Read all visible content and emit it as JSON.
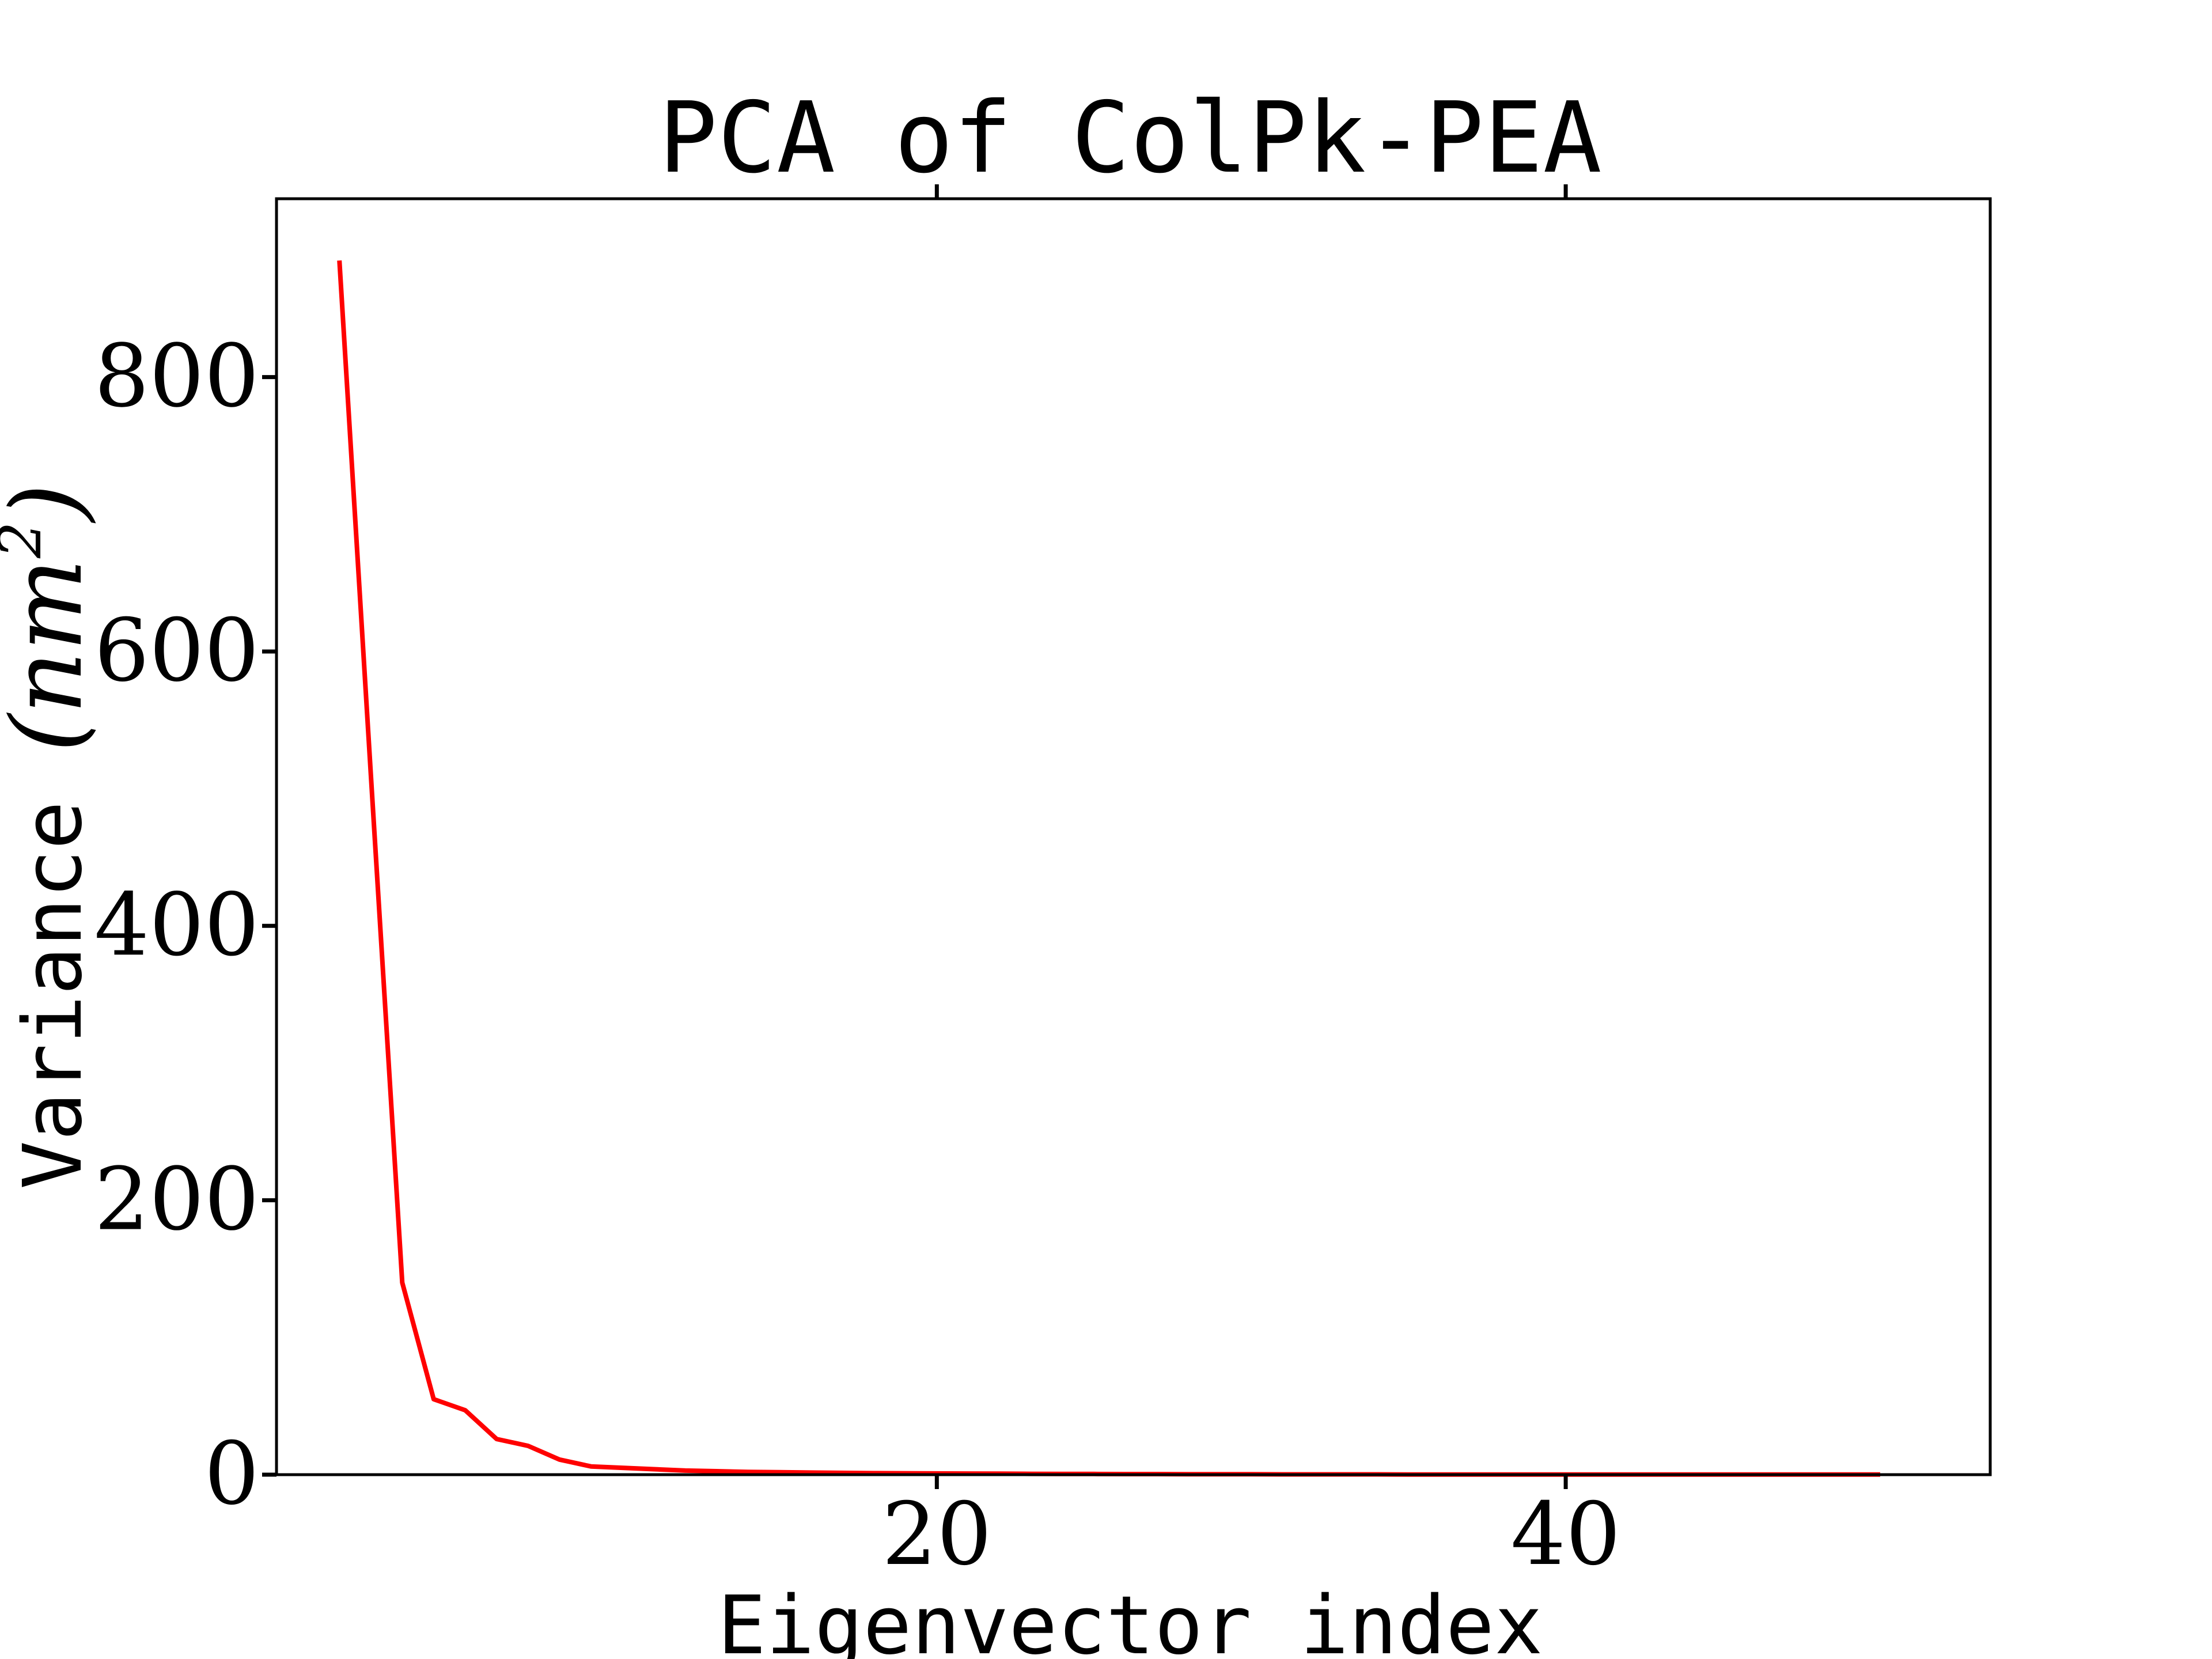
{
  "chart_data": {
    "type": "line",
    "title": "PCA of ColPk-PEA",
    "xlabel": "Eigenvector index",
    "ylabel_text": "Variance ",
    "ylabel_unit": "(nm",
    "ylabel_unit_sup": "2",
    "ylabel_unit_close": ")",
    "xlim": [
      -1,
      53.5
    ],
    "ylim": [
      0,
      930
    ],
    "xticks": [
      20,
      40
    ],
    "xtick_labels": [
      "20",
      "40"
    ],
    "yticks": [
      0,
      200,
      400,
      600,
      800
    ],
    "ytick_labels": [
      "0",
      "200",
      "400",
      "600",
      "800"
    ],
    "grid": false,
    "line_color": "#ff0000",
    "series": [
      {
        "x": [
          1,
          2,
          3,
          4,
          5,
          6,
          7,
          8,
          9,
          10,
          11,
          12,
          13,
          14,
          15,
          16,
          17,
          18,
          19,
          20,
          21,
          22,
          23,
          24,
          25,
          26,
          27,
          28,
          29,
          30,
          31,
          32,
          33,
          34,
          35,
          36,
          37,
          38,
          39,
          40,
          41,
          42,
          43,
          44,
          45,
          46,
          47,
          48,
          49,
          50
        ],
        "y": [
          885,
          510,
          140,
          55,
          47,
          26,
          21,
          11,
          6,
          5,
          4,
          3,
          2.5,
          2,
          1.8,
          1.5,
          1.3,
          1.1,
          1,
          0.9,
          0.8,
          0.7,
          0.6,
          0.5,
          0.5,
          0.4,
          0.4,
          0.3,
          0.3,
          0.3,
          0.2,
          0.2,
          0.2,
          0.2,
          0.1,
          0.1,
          0.1,
          0.1,
          0.1,
          0.1,
          0.1,
          0.1,
          0.1,
          0.1,
          0.1,
          0.1,
          0.1,
          0.1,
          0.1,
          0.1
        ]
      }
    ]
  }
}
